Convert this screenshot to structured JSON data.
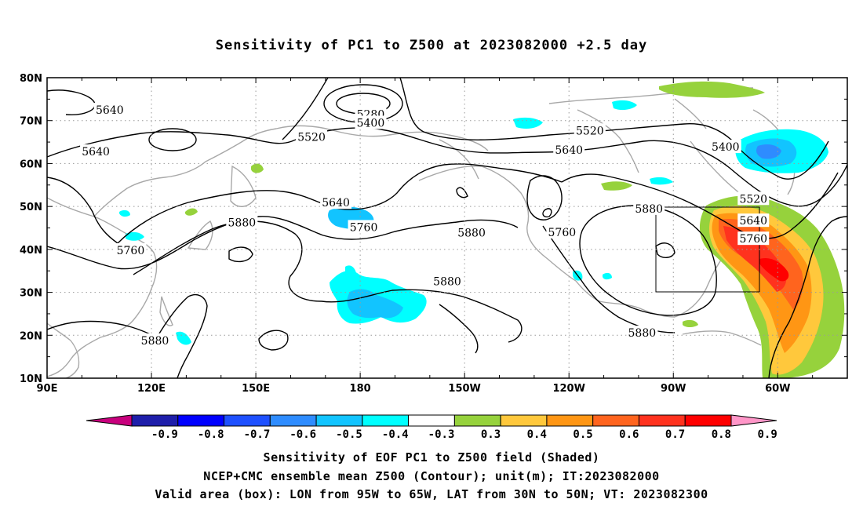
{
  "title": "Sensitivity of PC1 to Z500 at 2023082000 +2.5 day",
  "lat_ticks": [
    "80N",
    "70N",
    "60N",
    "50N",
    "40N",
    "30N",
    "20N",
    "10N"
  ],
  "lon_ticks": [
    "90E",
    "120E",
    "150E",
    "180",
    "150W",
    "120W",
    "90W",
    "60W"
  ],
  "contour_labels": [
    {
      "text": "5640",
      "lon": 108,
      "lat": 72.5
    },
    {
      "text": "5640",
      "lon": 104,
      "lat": 62.8
    },
    {
      "text": "5280",
      "lon": 183,
      "lat": 71.5
    },
    {
      "text": "5400",
      "lon": 183,
      "lat": 69.5
    },
    {
      "text": "5520",
      "lon": 166,
      "lat": 66.2
    },
    {
      "text": "5520",
      "lon": 246,
      "lat": 67.7
    },
    {
      "text": "5640",
      "lon": 240,
      "lat": 63.2
    },
    {
      "text": "5400",
      "lon": 285,
      "lat": 63.9
    },
    {
      "text": "5520",
      "lon": 293,
      "lat": 51.8
    },
    {
      "text": "5640",
      "lon": 293,
      "lat": 46.7
    },
    {
      "text": "5760",
      "lon": 293,
      "lat": 42.5
    },
    {
      "text": "5640",
      "lon": 173,
      "lat": 50.9
    },
    {
      "text": "5760",
      "lon": 181,
      "lat": 45.2
    },
    {
      "text": "5880",
      "lon": 146,
      "lat": 46.3
    },
    {
      "text": "5760",
      "lon": 114,
      "lat": 39.8
    },
    {
      "text": "5880",
      "lon": 212,
      "lat": 43.9
    },
    {
      "text": "5760",
      "lon": 238,
      "lat": 44.0
    },
    {
      "text": "5880",
      "lon": 263,
      "lat": 49.5
    },
    {
      "text": "5880",
      "lon": 205,
      "lat": 32.6
    },
    {
      "text": "5880",
      "lon": 121,
      "lat": 18.8
    },
    {
      "text": "5880",
      "lon": 261,
      "lat": 20.6
    }
  ],
  "colorbar": {
    "labels": [
      "-0.9",
      "-0.8",
      "-0.7",
      "-0.6",
      "-0.5",
      "-0.4",
      "-0.3",
      "0.3",
      "0.4",
      "0.5",
      "0.6",
      "0.7",
      "0.8",
      "0.9"
    ],
    "colors": [
      "#1e1eaa",
      "#0000ff",
      "#1e50ff",
      "#2e8cff",
      "#12c4ff",
      "#00ffff",
      "#ffffff",
      "#96d23c",
      "#ffc83c",
      "#ff9614",
      "#ff641e",
      "#ff321e",
      "#ff0000"
    ],
    "low_color": "#c8007d",
    "high_color": "#ff96c8"
  },
  "box": {
    "lon_min": 265,
    "lon_max": 295,
    "lat_min": 30,
    "lat_max": 50
  },
  "captions": [
    "Sensitivity of EOF PC1 to Z500 field (Shaded)",
    "NCEP+CMC ensemble mean Z500 (Contour); unit(m); IT:2023082000",
    "Valid area (box): LON from 95W to 65W, LAT from 30N to 50N; VT: 2023082300"
  ]
}
